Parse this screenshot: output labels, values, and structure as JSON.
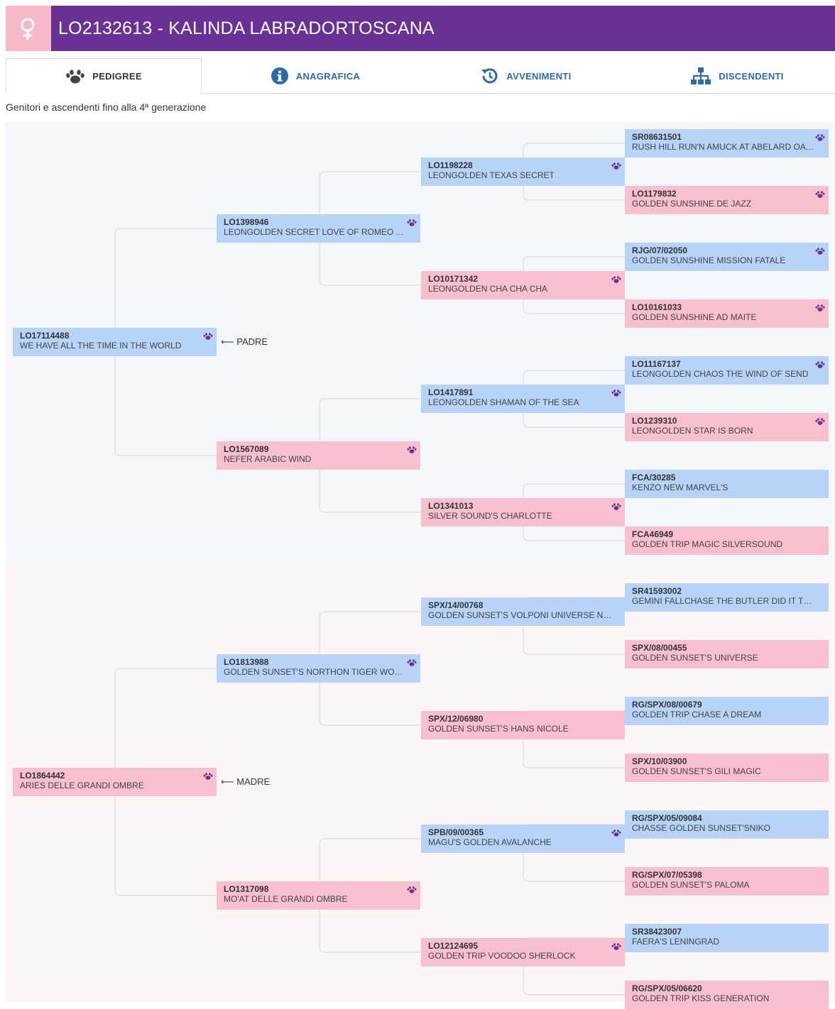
{
  "header": {
    "title": "LO2132613 - KALINDA LABRADORTOSCANA",
    "sex_icon": "female-symbol-icon",
    "colors": {
      "header_bg": "#6a3194",
      "sex_box": "#f7b8c8"
    }
  },
  "tabs": [
    {
      "label": "PEDIGREE",
      "icon": "paw-icon",
      "active": true
    },
    {
      "label": "ANAGRAFICA",
      "icon": "info-icon",
      "active": false
    },
    {
      "label": "AVVENIMENTI",
      "icon": "history-icon",
      "active": false
    },
    {
      "label": "DISCENDENTI",
      "icon": "sitemap-icon",
      "active": false
    }
  ],
  "subtitle": "Genitori e ascendenti fino alla 4ª generazione",
  "relations": {
    "father": "PADRE",
    "mother": "MADRE"
  },
  "colors": {
    "male": "#b7d4f8",
    "female": "#f8bfcd",
    "paw": "#6a3194"
  },
  "pedigree": {
    "father": {
      "code": "LO17114488",
      "name": "WE HAVE ALL THE TIME IN THE WORLD",
      "sex": "M",
      "paw": true
    },
    "mother": {
      "code": "LO1864442",
      "name": "ARIES DELLE GRANDI OMBRE",
      "sex": "F",
      "paw": true
    },
    "gen2": [
      {
        "code": "LO1398946",
        "name": "LEONGOLDEN SECRET LOVE OF ROMEO AND JULIET",
        "sex": "M",
        "paw": true
      },
      {
        "code": "LO1567089",
        "name": "NEFER ARABIC WIND",
        "sex": "F",
        "paw": true
      },
      {
        "code": "LO1813988",
        "name": "GOLDEN SUNSET'S NORTHON TIGER WOODS",
        "sex": "M",
        "paw": true
      },
      {
        "code": "LO1317098",
        "name": "MO'AT DELLE GRANDI OMBRE",
        "sex": "F",
        "paw": true
      }
    ],
    "gen3": [
      {
        "code": "LO1198228",
        "name": "LEONGOLDEN TEXAS SECRET",
        "sex": "M",
        "paw": true
      },
      {
        "code": "LO10171342",
        "name": "LEONGOLDEN CHA CHA CHA",
        "sex": "F",
        "paw": true
      },
      {
        "code": "LO1417891",
        "name": "LEONGOLDEN SHAMAN OF THE SEA",
        "sex": "M",
        "paw": true
      },
      {
        "code": "LO1341013",
        "name": "SILVER SOUND'S CHARLOTTE",
        "sex": "F",
        "paw": true
      },
      {
        "code": "SPX/14/00768",
        "name": "GOLDEN SUNSET'S VOLPONI UNIVERSE NORTHON",
        "sex": "M",
        "paw": false
      },
      {
        "code": "SPX/12/06980",
        "name": "GOLDEN SUNSET'S HANS NICOLE",
        "sex": "F",
        "paw": false
      },
      {
        "code": "SPB/09/00365",
        "name": "MAGU'S GOLDEN AVALANCHE",
        "sex": "M",
        "paw": true
      },
      {
        "code": "LO12124695",
        "name": "GOLDEN TRIP VOODOO SHERLOCK",
        "sex": "F",
        "paw": true
      }
    ],
    "gen4": [
      {
        "code": "SR08631501",
        "name": "RUSH HILL RUN'N AMUCK AT ABELARD OA OAC WC",
        "sex": "M",
        "paw": true
      },
      {
        "code": "LO1179832",
        "name": "GOLDEN SUNSHINE DE JAZZ",
        "sex": "F",
        "paw": true
      },
      {
        "code": "RJG/07/02050",
        "name": "GOLDEN SUNSHINE MISSION FATALE",
        "sex": "M",
        "paw": true
      },
      {
        "code": "LO10161033",
        "name": "GOLDEN SUNSHINE AD MAITE",
        "sex": "F",
        "paw": true
      },
      {
        "code": "LO11167137",
        "name": "LEONGOLDEN CHAOS THE WIND OF SEND",
        "sex": "M",
        "paw": true
      },
      {
        "code": "LO1239310",
        "name": "LEONGOLDEN STAR IS BORN",
        "sex": "F",
        "paw": true
      },
      {
        "code": "FCA/30285",
        "name": "KENZO NEW MARVEL'S",
        "sex": "M",
        "paw": false
      },
      {
        "code": "FCA46949",
        "name": "GOLDEN TRIP MAGIC SILVERSOUND",
        "sex": "F",
        "paw": false
      },
      {
        "code": "SR41593002",
        "name": "GEMINI FALLCHASE THE BUTLER DID IT TKNC WC",
        "sex": "M",
        "paw": false
      },
      {
        "code": "SPX/08/00455",
        "name": "GOLDEN SUNSET'S UNIVERSE",
        "sex": "F",
        "paw": false
      },
      {
        "code": "RG/SPX/08/00679",
        "name": "GOLDEN TRIP CHASE A DREAM",
        "sex": "M",
        "paw": false
      },
      {
        "code": "SPX/10/03900",
        "name": "GOLDEN SUNSET'S GILI MAGIC",
        "sex": "F",
        "paw": false
      },
      {
        "code": "RG/SPX/05/09084",
        "name": "CHASSE GOLDEN SUNSET'SNIKO",
        "sex": "M",
        "paw": false
      },
      {
        "code": "RG/SPX/07/05398",
        "name": "GOLDEN SUNSET'S PALOMA",
        "sex": "F",
        "paw": false
      },
      {
        "code": "SR38423007",
        "name": "FAERA'S LENINGRAD",
        "sex": "M",
        "paw": false
      },
      {
        "code": "RG/SPX/05/06620",
        "name": "GOLDEN TRIP KISS GENERATION",
        "sex": "F",
        "paw": false
      }
    ]
  }
}
